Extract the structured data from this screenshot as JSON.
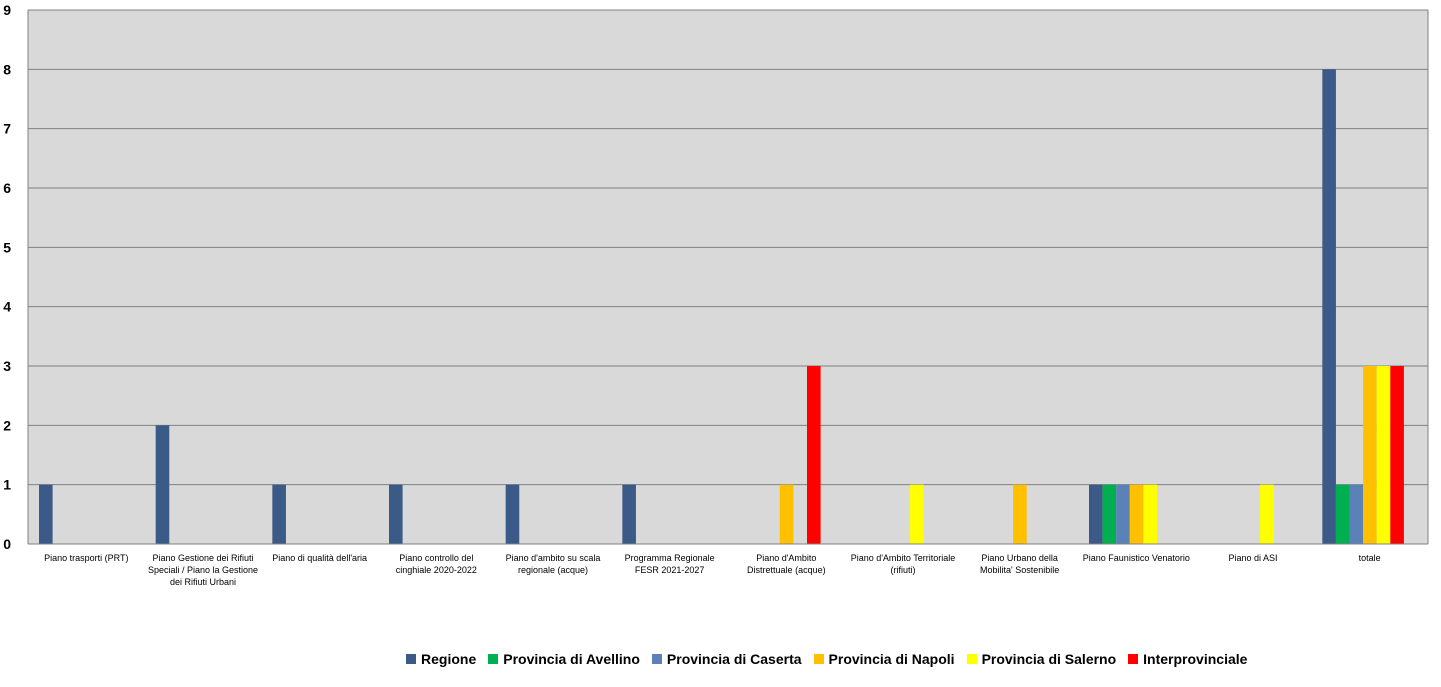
{
  "chart_data": {
    "type": "bar",
    "categories": [
      [
        "Piano trasporti (PRT)"
      ],
      [
        "Piano Gestione dei Rifiuti",
        "Speciali / Piano la Gestione",
        "dei Rifiuti Urbani"
      ],
      [
        "Piano di qualità dell'aria"
      ],
      [
        "Piano controllo del",
        "cinghiale 2020-2022"
      ],
      [
        "Piano d'ambito su scala",
        "regionale (acque)"
      ],
      [
        "Programma Regionale",
        "FESR 2021-2027"
      ],
      [
        "Piano d'Ambito",
        "Distrettuale (acque)"
      ],
      [
        "Piano d'Ambito Territoriale",
        "(rifiuti)"
      ],
      [
        "Piano Urbano della",
        "Mobilita' Sostenibile"
      ],
      [
        "Piano Faunistico Venatorio"
      ],
      [
        "Piano di ASI"
      ],
      [
        "totale"
      ]
    ],
    "series": [
      {
        "name": "Regione",
        "color": "#3C5A87",
        "values": [
          1,
          2,
          1,
          1,
          1,
          1,
          0,
          0,
          0,
          1,
          0,
          8
        ]
      },
      {
        "name": "Provincia di Avellino",
        "color": "#00B050",
        "values": [
          0,
          0,
          0,
          0,
          0,
          0,
          0,
          0,
          0,
          1,
          0,
          1
        ]
      },
      {
        "name": "Provincia di Caserta",
        "color": "#5B82B8",
        "values": [
          0,
          0,
          0,
          0,
          0,
          0,
          0,
          0,
          0,
          1,
          0,
          1
        ]
      },
      {
        "name": "Provincia di Napoli",
        "color": "#FFC000",
        "values": [
          0,
          0,
          0,
          0,
          0,
          0,
          1,
          0,
          1,
          1,
          0,
          3
        ]
      },
      {
        "name": "Provincia di Salerno",
        "color": "#FFFF00",
        "values": [
          0,
          0,
          0,
          0,
          0,
          0,
          0,
          1,
          0,
          1,
          1,
          3
        ]
      },
      {
        "name": "Interprovinciale",
        "color": "#FF0000",
        "values": [
          0,
          0,
          0,
          0,
          0,
          0,
          3,
          0,
          0,
          0,
          0,
          3
        ]
      }
    ],
    "yticks": [
      "0",
      "1",
      "2",
      "3",
      "4",
      "5",
      "6",
      "7",
      "8",
      "9"
    ],
    "ylim": [
      0,
      9
    ],
    "grid": true,
    "legend_position": "bottom",
    "plot_background": "#D9D9D9"
  }
}
